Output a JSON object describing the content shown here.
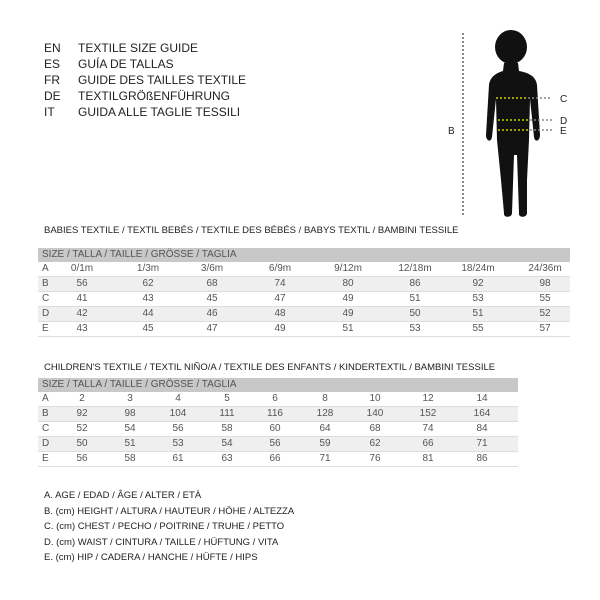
{
  "languages": [
    {
      "code": "EN",
      "title": "TEXTILE SIZE GUIDE"
    },
    {
      "code": "ES",
      "title": "GUÍA DE TALLAS"
    },
    {
      "code": "FR",
      "title": "GUIDE DES TAILLES TEXTILE"
    },
    {
      "code": "DE",
      "title": "TEXTILGRÖßENFÜHRUNG"
    },
    {
      "code": "IT",
      "title": "GUIDA ALLE TAGLIE TESSILI"
    }
  ],
  "figure": {
    "labels": {
      "B": "B",
      "C": "C",
      "D": "D",
      "E": "E"
    },
    "silhouette_color": "#111111",
    "marker_color": "#c8d400"
  },
  "babies": {
    "title": "BABIES TEXTILE / TEXTIL BEBÉS / TEXTILE DES BÉBÉS / BABYS TEXTIL  / BAMBINI TESSILE",
    "header": "SIZE / TALLA / TAILLE / GRÖSSE / TAGLIA",
    "rows": [
      {
        "label": "A",
        "values": [
          "0/1m",
          "1/3m",
          "3/6m",
          "6/9m",
          "9/12m",
          "12/18m",
          "18/24m",
          "24/36m"
        ]
      },
      {
        "label": "B",
        "values": [
          "56",
          "62",
          "68",
          "74",
          "80",
          "86",
          "92",
          "98"
        ]
      },
      {
        "label": "C",
        "values": [
          "41",
          "43",
          "45",
          "47",
          "49",
          "51",
          "53",
          "55"
        ]
      },
      {
        "label": "D",
        "values": [
          "42",
          "44",
          "46",
          "48",
          "49",
          "50",
          "51",
          "52"
        ]
      },
      {
        "label": "E",
        "values": [
          "43",
          "45",
          "47",
          "49",
          "51",
          "53",
          "55",
          "57"
        ]
      }
    ]
  },
  "children": {
    "title": "CHILDREN'S TEXTILE / TEXTIL NIÑO/A / TEXTILE DES ENFANTS / KINDERTEXTIL / BAMBINI TESSILE",
    "header": "SIZE / TALLA / TAILLE / GRÖSSE / TAGLIA",
    "rows": [
      {
        "label": "A",
        "values": [
          "2",
          "3",
          "4",
          "5",
          "6",
          "8",
          "10",
          "12",
          "14"
        ]
      },
      {
        "label": "B",
        "values": [
          "92",
          "98",
          "104",
          "111",
          "116",
          "128",
          "140",
          "152",
          "164"
        ]
      },
      {
        "label": "C",
        "values": [
          "52",
          "54",
          "56",
          "58",
          "60",
          "64",
          "68",
          "74",
          "84"
        ]
      },
      {
        "label": "D",
        "values": [
          "50",
          "51",
          "53",
          "54",
          "56",
          "59",
          "62",
          "66",
          "71"
        ]
      },
      {
        "label": "E",
        "values": [
          "56",
          "58",
          "61",
          "63",
          "66",
          "71",
          "76",
          "81",
          "86"
        ]
      }
    ]
  },
  "legend": [
    "A. AGE / EDAD / ÂGE / ALTER / ETÀ",
    "B. (cm) HEIGHT / ALTURA / HAUTEUR / HÖHE / ALTEZZA",
    "C. (cm) CHEST / PECHO / POITRINE / TRUHE / PETTO",
    "D. (cm) WAIST / CINTURA / TAILLE / HÜFTUNG / VITA",
    "E. (cm) HIP / CADERA / HANCHE / HÜFTE / HIPS"
  ]
}
